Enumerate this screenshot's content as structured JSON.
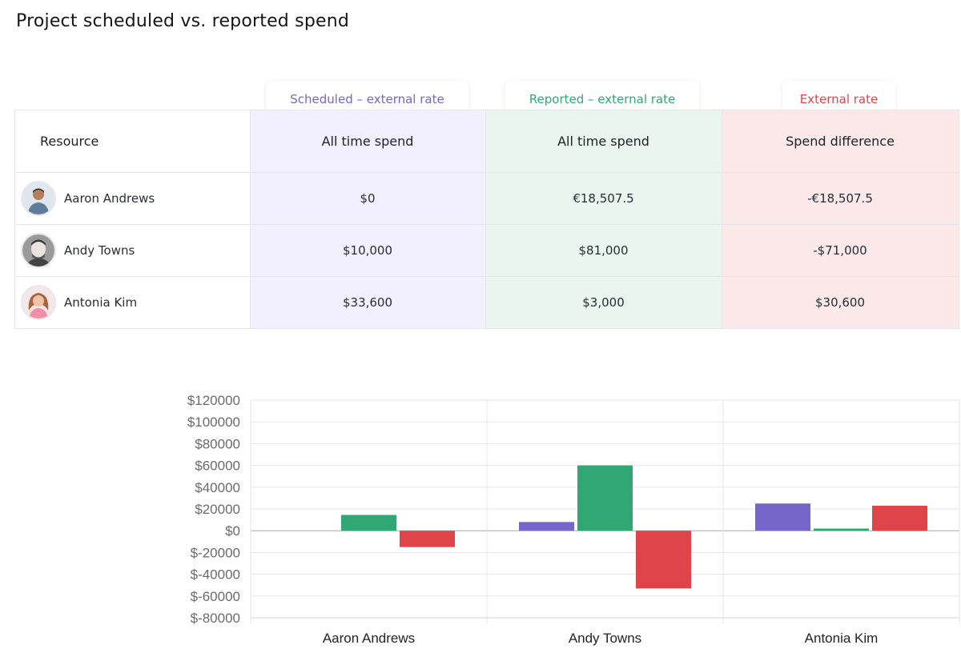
{
  "page": {
    "title": "Project scheduled vs. reported spend"
  },
  "colors": {
    "scheduled": "#7766c9",
    "reported": "#31a874",
    "difference": "#df4448"
  },
  "column_tags": [
    {
      "label": "Scheduled – external rate",
      "color": "#7766c9"
    },
    {
      "label": "Reported – external rate",
      "color": "#31a874"
    },
    {
      "label": "External rate",
      "color": "#df4448"
    }
  ],
  "table": {
    "headers": [
      "Resource",
      "All time spend",
      "All time spend",
      "Spend difference"
    ],
    "rows": [
      {
        "name": "Aaron Andrews",
        "avatar": "avatar-aaron-icon",
        "scheduled": "$0",
        "reported": "€18,507.5",
        "difference": "-€18,507.5"
      },
      {
        "name": "Andy Towns",
        "avatar": "avatar-andy-icon",
        "scheduled": "$10,000",
        "reported": "$81,000",
        "difference": "-$71,000"
      },
      {
        "name": "Antonia Kim",
        "avatar": "avatar-antonia-icon",
        "scheduled": "$33,600",
        "reported": "$3,000",
        "difference": "$30,600"
      }
    ]
  },
  "chart_data": {
    "type": "bar",
    "categories": [
      "Aaron Andrews",
      "Andy Towns",
      "Antonia Kim"
    ],
    "series": [
      {
        "values": [
          0,
          8000,
          25000
        ],
        "color": "#7766c9"
      },
      {
        "values": [
          14500,
          60000,
          2000
        ],
        "color": "#31a874"
      },
      {
        "values": [
          -15000,
          -53000,
          23000
        ],
        "color": "#df4448"
      }
    ],
    "ylim": [
      -80000,
      120000
    ],
    "yticks": [
      120000,
      100000,
      80000,
      60000,
      40000,
      20000,
      0,
      -20000,
      -40000,
      -60000,
      -80000
    ],
    "ytick_labels": [
      "$120000",
      "$100000",
      "$80000",
      "$60000",
      "$40000",
      "$20000",
      "$0",
      "$-20000",
      "$-40000",
      "$-60000",
      "$-80000"
    ],
    "grid": true,
    "legend": "none"
  }
}
